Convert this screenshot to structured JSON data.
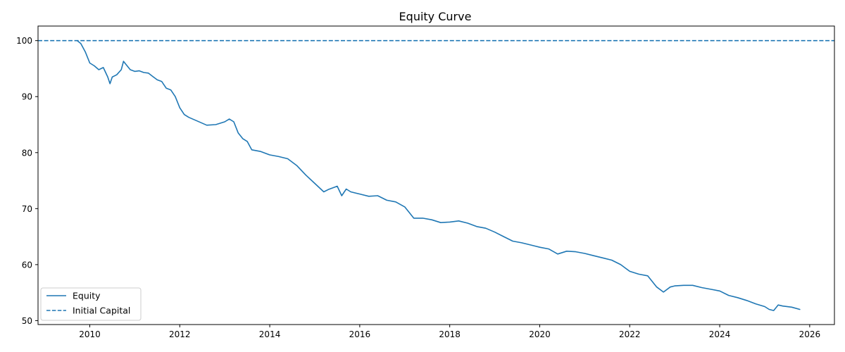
{
  "chart_data": {
    "type": "line",
    "title": "Equity Curve",
    "xlabel": "",
    "ylabel": "",
    "xlim": [
      2008.85,
      2026.55
    ],
    "ylim": [
      49.3,
      102.6
    ],
    "x_ticks": [
      2010,
      2012,
      2014,
      2016,
      2018,
      2020,
      2022,
      2024,
      2026
    ],
    "y_ticks": [
      50,
      60,
      70,
      80,
      90,
      100
    ],
    "grid": false,
    "legend_position": "lower-left",
    "series": [
      {
        "name": "Equity",
        "color": "#1f77b4",
        "style": "solid",
        "x": [
          2009.72,
          2009.8,
          2009.9,
          2010.0,
          2010.1,
          2010.2,
          2010.3,
          2010.4,
          2010.45,
          2010.5,
          2010.6,
          2010.7,
          2010.75,
          2010.8,
          2010.9,
          2011.0,
          2011.1,
          2011.2,
          2011.3,
          2011.4,
          2011.5,
          2011.6,
          2011.7,
          2011.8,
          2011.9,
          2012.0,
          2012.1,
          2012.2,
          2012.4,
          2012.6,
          2012.8,
          2013.0,
          2013.1,
          2013.2,
          2013.3,
          2013.4,
          2013.5,
          2013.6,
          2013.8,
          2014.0,
          2014.2,
          2014.4,
          2014.6,
          2014.8,
          2015.0,
          2015.2,
          2015.3,
          2015.5,
          2015.6,
          2015.7,
          2015.8,
          2016.0,
          2016.2,
          2016.4,
          2016.6,
          2016.8,
          2017.0,
          2017.2,
          2017.4,
          2017.6,
          2017.8,
          2018.0,
          2018.2,
          2018.4,
          2018.6,
          2018.8,
          2019.0,
          2019.2,
          2019.4,
          2019.6,
          2019.8,
          2020.0,
          2020.2,
          2020.4,
          2020.6,
          2020.8,
          2021.0,
          2021.2,
          2021.4,
          2021.6,
          2021.8,
          2022.0,
          2022.2,
          2022.4,
          2022.6,
          2022.75,
          2022.9,
          2023.0,
          2023.2,
          2023.4,
          2023.6,
          2023.8,
          2024.0,
          2024.2,
          2024.4,
          2024.6,
          2024.8,
          2025.0,
          2025.1,
          2025.2,
          2025.3,
          2025.4,
          2025.6,
          2025.78
        ],
        "y": [
          100.0,
          99.5,
          98.0,
          96.0,
          95.5,
          94.8,
          95.2,
          93.5,
          92.3,
          93.5,
          93.9,
          94.8,
          96.3,
          95.8,
          94.8,
          94.5,
          94.6,
          94.3,
          94.2,
          93.6,
          93.0,
          92.7,
          91.5,
          91.2,
          90.0,
          88.0,
          86.8,
          86.3,
          85.6,
          84.9,
          85.0,
          85.5,
          86.0,
          85.5,
          83.5,
          82.5,
          82.0,
          80.5,
          80.2,
          79.6,
          79.3,
          78.9,
          77.7,
          76.0,
          74.5,
          73.0,
          73.4,
          74.0,
          72.3,
          73.5,
          73.0,
          72.6,
          72.2,
          72.3,
          71.5,
          71.2,
          70.3,
          68.3,
          68.3,
          68.0,
          67.5,
          67.6,
          67.8,
          67.4,
          66.8,
          66.5,
          65.8,
          65.0,
          64.2,
          63.9,
          63.5,
          63.1,
          62.8,
          61.9,
          62.4,
          62.3,
          62.0,
          61.6,
          61.2,
          60.8,
          60.0,
          58.8,
          58.3,
          58.0,
          56.0,
          55.1,
          56.0,
          56.2,
          56.3,
          56.3,
          55.9,
          55.6,
          55.3,
          54.5,
          54.1,
          53.6,
          53.0,
          52.5,
          52.0,
          51.8,
          52.8,
          52.6,
          52.4,
          52.0
        ]
      },
      {
        "name": "Initial Capital",
        "color": "#1f77b4",
        "style": "dashed",
        "y_constant": 100
      }
    ]
  }
}
